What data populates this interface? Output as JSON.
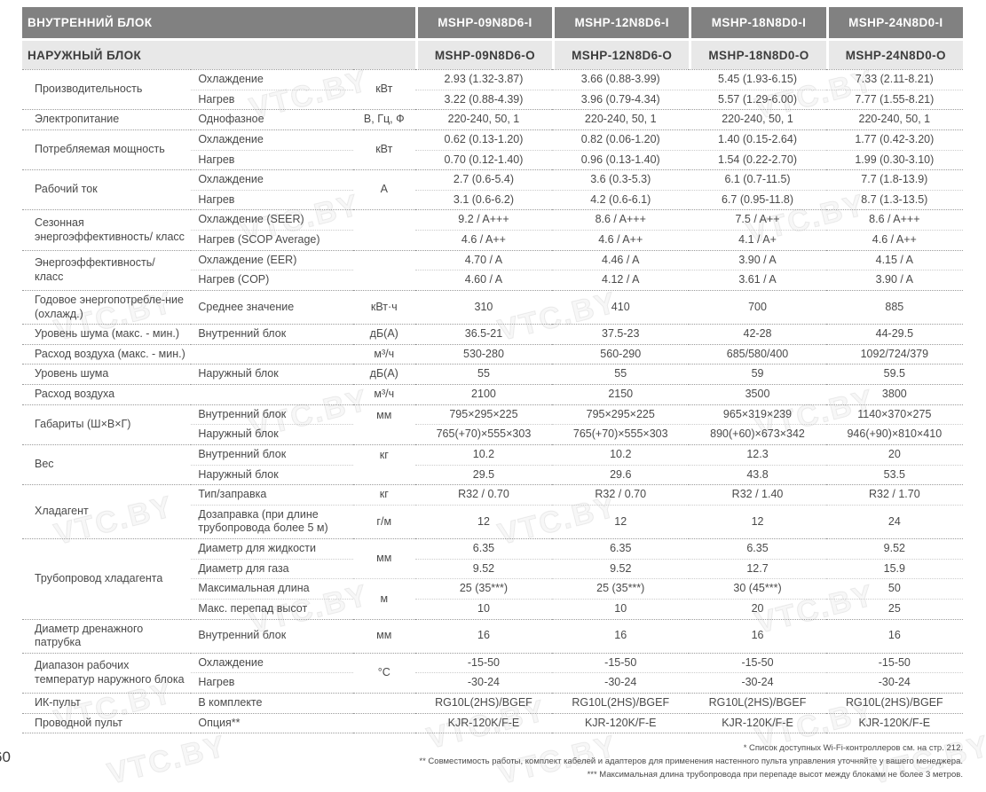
{
  "page": {
    "number": "60"
  },
  "watermark_text": "VTC.BY",
  "header": {
    "indoor_label": "ВНУТРЕННИЙ БЛОК",
    "outdoor_label": "НАРУЖНЫЙ БЛОК",
    "indoor_models": [
      "MSHP-09N8D6-I",
      "MSHP-12N8D6-I",
      "MSHP-18N8D0-I",
      "MSHP-24N8D0-I"
    ],
    "outdoor_models": [
      "MSHP-09N8D6-O",
      "MSHP-12N8D6-O",
      "MSHP-18N8D0-O",
      "MSHP-24N8D0-O"
    ]
  },
  "colors": {
    "header_dark_bg": "#818181",
    "header_light_bg": "#e8e8e8",
    "text": "#4a4a4a"
  },
  "table": {
    "groups": [
      {
        "label": "Производительность",
        "units": [
          {
            "text": "кВт",
            "span": 2,
            "valign": "middle"
          }
        ],
        "rows": [
          {
            "sublabel": "Охлаждение",
            "values": [
              "2.93 (1.32-3.87)",
              "3.66 (0.88-3.99)",
              "5.45 (1.93-6.15)",
              "7.33 (2.11-8.21)"
            ]
          },
          {
            "sublabel": "Нагрев",
            "values": [
              "3.22 (0.88-4.39)",
              "3.96 (0.79-4.34)",
              "5.57 (1.29-6.00)",
              "7.77 (1.55-8.21)"
            ]
          }
        ]
      },
      {
        "label": "Электропитание",
        "units": [
          {
            "text": "В, Гц, Ф",
            "span": 1
          }
        ],
        "rows": [
          {
            "sublabel": "Однофазное",
            "values": [
              "220-240, 50, 1",
              "220-240, 50, 1",
              "220-240, 50, 1",
              "220-240, 50, 1"
            ]
          }
        ]
      },
      {
        "label": "Потребляемая мощность",
        "units": [
          {
            "text": "кВт",
            "span": 2,
            "valign": "middle"
          }
        ],
        "rows": [
          {
            "sublabel": "Охлаждение",
            "values": [
              "0.62 (0.13-1.20)",
              "0.82 (0.06-1.20)",
              "1.40 (0.15-2.64)",
              "1.77 (0.42-3.20)"
            ]
          },
          {
            "sublabel": "Нагрев",
            "values": [
              "0.70 (0.12-1.40)",
              "0.96 (0.13-1.40)",
              "1.54 (0.22-2.70)",
              "1.99 (0.30-3.10)"
            ]
          }
        ]
      },
      {
        "label": "Рабочий ток",
        "units": [
          {
            "text": "А",
            "span": 2,
            "valign": "middle"
          }
        ],
        "rows": [
          {
            "sublabel": "Охлаждение",
            "values": [
              "2.7 (0.6-5.4)",
              "3.6 (0.3-5.3)",
              "6.1 (0.7-11.5)",
              "7.7 (1.8-13.9)"
            ]
          },
          {
            "sublabel": "Нагрев",
            "values": [
              "3.1 (0.6-6.2)",
              "4.2 (0.6-6.1)",
              "6.7 (0.95-11.8)",
              "8.7 (1.3-13.5)"
            ]
          }
        ]
      },
      {
        "label": "Сезонная энергоэффективность/ класс",
        "units": [
          {
            "text": "",
            "span": 2,
            "valign": "middle"
          }
        ],
        "rows": [
          {
            "sublabel": "Охлаждение (SEER)",
            "values": [
              "9.2 / A+++",
              "8.6 / A+++",
              "7.5 / A++",
              "8.6 / A+++"
            ]
          },
          {
            "sublabel": "Нагрев (SCOP Average)",
            "values": [
              "4.6 / A++",
              "4.6 / A++",
              "4.1 / A+",
              "4.6 / A++"
            ]
          }
        ]
      },
      {
        "label": "Энергоэффективность/ класс",
        "units": [
          {
            "text": "",
            "span": 2,
            "valign": "middle"
          }
        ],
        "rows": [
          {
            "sublabel": "Охлаждение (EER)",
            "values": [
              "4.70 / A",
              "4.46 / A",
              "3.90 / A",
              "4.15 / A"
            ]
          },
          {
            "sublabel": "Нагрев (COP)",
            "values": [
              "4.60 / A",
              "4.12 / A",
              "3.61 / A",
              "3.90 / A"
            ]
          }
        ]
      },
      {
        "label": "Годовое энергопотребле-ние (охлажд.)",
        "units": [
          {
            "text": "кВт·ч",
            "span": 1
          }
        ],
        "rows": [
          {
            "sublabel": "Среднее значение",
            "values": [
              "310",
              "410",
              "700",
              "885"
            ]
          }
        ]
      },
      {
        "label": "Уровень шума (макс. - мин.)",
        "units": [
          {
            "text": "дБ(А)",
            "span": 1
          }
        ],
        "rows": [
          {
            "sublabel": "Внутренний блок",
            "values": [
              "36.5-21",
              "37.5-23",
              "42-28",
              "44-29.5"
            ]
          }
        ]
      },
      {
        "label": "Расход воздуха (макс. - мин.)",
        "units": [
          {
            "text": "м³/ч",
            "span": 1
          }
        ],
        "rows": [
          {
            "sublabel": "",
            "values": [
              "530-280",
              "560-290",
              "685/580/400",
              "1092/724/379"
            ]
          }
        ]
      },
      {
        "label": "Уровень шума",
        "units": [
          {
            "text": "дБ(А)",
            "span": 1
          }
        ],
        "rows": [
          {
            "sublabel": "Наружный блок",
            "values": [
              "55",
              "55",
              "59",
              "59.5"
            ]
          }
        ]
      },
      {
        "label": "Расход воздуха",
        "units": [
          {
            "text": "м³/ч",
            "span": 1
          }
        ],
        "rows": [
          {
            "sublabel": "",
            "values": [
              "2100",
              "2150",
              "3500",
              "3800"
            ]
          }
        ]
      },
      {
        "label": "Габариты (Ш×В×Г)",
        "units": [
          {
            "text": "мм",
            "span": 2,
            "valign": "top"
          }
        ],
        "rows": [
          {
            "sublabel": "Внутренний блок",
            "values": [
              "795×295×225",
              "795×295×225",
              "965×319×239",
              "1140×370×275"
            ]
          },
          {
            "sublabel": "Наружный блок",
            "values": [
              "765(+70)×555×303",
              "765(+70)×555×303",
              "890(+60)×673×342",
              "946(+90)×810×410"
            ]
          }
        ]
      },
      {
        "label": "Вес",
        "units": [
          {
            "text": "кг",
            "span": 2,
            "valign": "top"
          }
        ],
        "rows": [
          {
            "sublabel": "Внутренний блок",
            "values": [
              "10.2",
              "10.2",
              "12.3",
              "20"
            ]
          },
          {
            "sublabel": "Наружный блок",
            "values": [
              "29.5",
              "29.6",
              "43.8",
              "53.5"
            ]
          }
        ]
      },
      {
        "label": "Хладагент",
        "units": [
          {
            "text": "кг",
            "span": 1
          },
          {
            "text": "г/м",
            "span": 1
          }
        ],
        "rows": [
          {
            "sublabel": "Тип/заправка",
            "values": [
              "R32 / 0.70",
              "R32 / 0.70",
              "R32 / 1.40",
              "R32 / 1.70"
            ]
          },
          {
            "sublabel": "Дозаправка (при длине трубопровода более 5 м)",
            "values": [
              "12",
              "12",
              "12",
              "24"
            ]
          }
        ]
      },
      {
        "label": "Трубопровод хладагента",
        "units": [
          {
            "text": "мм",
            "span": 2,
            "valign": "middle"
          },
          {
            "text": "м",
            "span": 2,
            "valign": "middle"
          }
        ],
        "rows": [
          {
            "sublabel": "Диаметр для жидкости",
            "values": [
              "6.35",
              "6.35",
              "6.35",
              "9.52"
            ]
          },
          {
            "sublabel": "Диаметр для газа",
            "values": [
              "9.52",
              "9.52",
              "12.7",
              "15.9"
            ]
          },
          {
            "sublabel": "Максимальная длина",
            "values": [
              "25 (35***)",
              "25 (35***)",
              "30 (45***)",
              "50"
            ]
          },
          {
            "sublabel": "Макс. перепад высот",
            "values": [
              "10",
              "10",
              "20",
              "25"
            ]
          }
        ]
      },
      {
        "label": "Диаметр дренажного патрубка",
        "units": [
          {
            "text": "мм",
            "span": 1
          }
        ],
        "rows": [
          {
            "sublabel": "Внутренний блок",
            "values": [
              "16",
              "16",
              "16",
              "16"
            ]
          }
        ]
      },
      {
        "label": "Диапазон рабочих температур наружного блока",
        "units": [
          {
            "text": "°C",
            "span": 2,
            "valign": "middle"
          }
        ],
        "rows": [
          {
            "sublabel": "Охлаждение",
            "values": [
              "-15-50",
              "-15-50",
              "-15-50",
              "-15-50"
            ]
          },
          {
            "sublabel": "Нагрев",
            "values": [
              "-30-24",
              "-30-24",
              "-30-24",
              "-30-24"
            ]
          }
        ]
      },
      {
        "label": "ИК-пульт",
        "units": [
          {
            "text": "",
            "span": 1
          }
        ],
        "rows": [
          {
            "sublabel": "В комплекте",
            "values": [
              "RG10L(2HS)/BGEF",
              "RG10L(2HS)/BGEF",
              "RG10L(2HS)/BGEF",
              "RG10L(2HS)/BGEF"
            ]
          }
        ]
      },
      {
        "label": "Проводной пульт",
        "units": [
          {
            "text": "",
            "span": 1
          }
        ],
        "rows": [
          {
            "sublabel": "Опция**",
            "values": [
              "KJR-120K/F-E",
              "KJR-120K/F-E",
              "KJR-120K/F-E",
              "KJR-120K/F-E"
            ]
          }
        ]
      }
    ]
  },
  "footnotes": [
    "* Список доступных Wi-Fi-контроллеров см. на стр. 212.",
    "** Совместимость работы, комплект кабелей и адаптеров для применения настенного пульта управления уточняйте у вашего менеджера.",
    "*** Максимальная длина трубопровода при перепаде высот между блоками не более 3 метров."
  ]
}
